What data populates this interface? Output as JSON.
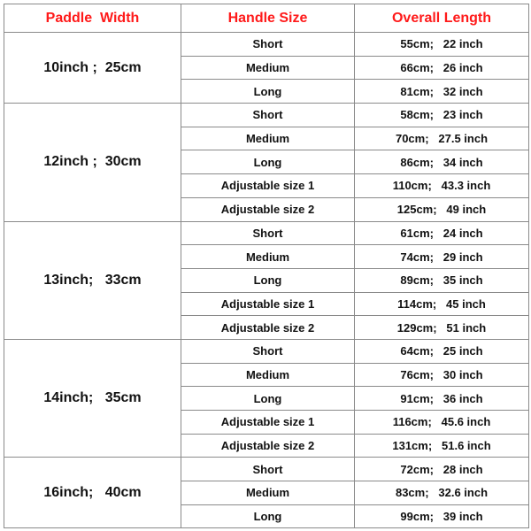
{
  "header": {
    "paddle_width": "Paddle  Width",
    "handle_size": "Handle Size",
    "overall_length": "Overall Length"
  },
  "header_color": "#ff1a1a",
  "groups": [
    {
      "paddle_width": "10inch ;  25cm",
      "rows": [
        {
          "handle": "Short",
          "length": "55cm;   22 inch"
        },
        {
          "handle": "Medium",
          "length": "66cm;   26 inch"
        },
        {
          "handle": "Long",
          "length": "81cm;   32 inch"
        }
      ]
    },
    {
      "paddle_width": "12inch ;  30cm",
      "rows": [
        {
          "handle": "Short",
          "length": "58cm;   23 inch"
        },
        {
          "handle": "Medium",
          "length": "70cm;   27.5 inch"
        },
        {
          "handle": "Long",
          "length": "86cm;   34 inch"
        },
        {
          "handle": "Adjustable size 1",
          "length": "110cm;   43.3 inch"
        },
        {
          "handle": "Adjustable size 2",
          "length": "125cm;   49 inch"
        }
      ]
    },
    {
      "paddle_width": "13inch;   33cm",
      "rows": [
        {
          "handle": "Short",
          "length": "61cm;   24 inch"
        },
        {
          "handle": "Medium",
          "length": "74cm;   29 inch"
        },
        {
          "handle": "Long",
          "length": "89cm;   35 inch"
        },
        {
          "handle": "Adjustable size 1",
          "length": "114cm;   45 inch"
        },
        {
          "handle": "Adjustable size 2",
          "length": "129cm;   51 inch"
        }
      ]
    },
    {
      "paddle_width": "14inch;   35cm",
      "rows": [
        {
          "handle": "Short",
          "length": "64cm;   25 inch"
        },
        {
          "handle": "Medium",
          "length": "76cm;   30 inch"
        },
        {
          "handle": "Long",
          "length": "91cm;   36 inch"
        },
        {
          "handle": "Adjustable size 1",
          "length": "116cm;   45.6 inch"
        },
        {
          "handle": "Adjustable size 2",
          "length": "131cm;   51.6 inch"
        }
      ]
    },
    {
      "paddle_width": "16inch;   40cm",
      "rows": [
        {
          "handle": "Short",
          "length": "72cm;   28 inch"
        },
        {
          "handle": "Medium",
          "length": "83cm;   32.6 inch"
        },
        {
          "handle": "Long",
          "length": "99cm;   39 inch"
        }
      ]
    }
  ]
}
